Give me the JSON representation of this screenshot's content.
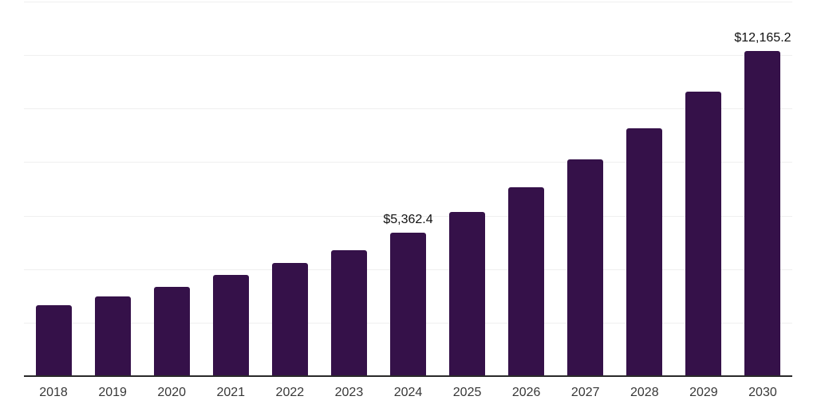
{
  "chart_data": {
    "type": "bar",
    "title": "",
    "categories": [
      "2018",
      "2019",
      "2020",
      "2021",
      "2022",
      "2023",
      "2024",
      "2025",
      "2026",
      "2027",
      "2028",
      "2029",
      "2030"
    ],
    "values": [
      2640,
      2985,
      3330,
      3775,
      4240,
      4715,
      5362.4,
      6150,
      7070,
      8100,
      9270,
      10620,
      12165.2
    ],
    "value_labels": [
      "",
      "",
      "",
      "",
      "",
      "",
      "$5,362.4",
      "",
      "",
      "",
      "",
      "",
      "$12,165.2"
    ],
    "xlabel": "",
    "ylabel": "",
    "ylim": [
      0,
      14000
    ],
    "grid_step": 2000,
    "grid": true,
    "legend": false,
    "y_tick_labels_visible": false,
    "labeled_points": [
      {
        "category": "2024",
        "label": "$5,362.4",
        "value": 5362.4
      },
      {
        "category": "2030",
        "label": "$12,165.2",
        "value": 12165.2
      }
    ]
  },
  "colors": {
    "bar": "#351149",
    "grid": "#efefef",
    "axis": "#2a2a2a",
    "value_label": "#111111",
    "tick_label": "#383838",
    "background": "#ffffff"
  }
}
